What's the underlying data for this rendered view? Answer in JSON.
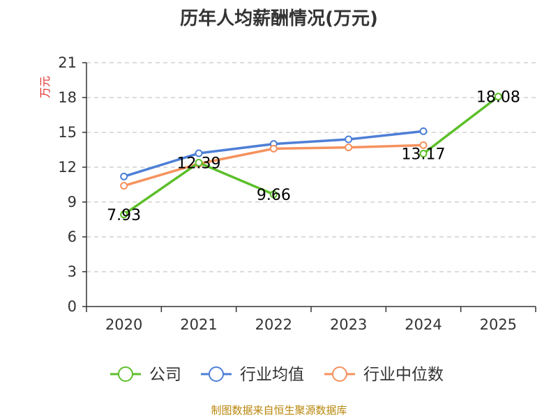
{
  "chart_data": {
    "type": "line",
    "title": "历年人均薪酬情况(万元)",
    "ylabel": "万元",
    "xlabel": "",
    "ylim": [
      0,
      21
    ],
    "yticks": [
      0,
      3,
      6,
      9,
      12,
      15,
      18,
      21
    ],
    "categories": [
      "2020",
      "2021",
      "2022",
      "2023",
      "2024",
      "2025"
    ],
    "grid": true,
    "legend_position": "bottom",
    "series": [
      {
        "name": "公司",
        "color": "#5cbf2a",
        "values": [
          7.93,
          12.39,
          9.66,
          null,
          13.17,
          18.08
        ],
        "labels": [
          "7.93",
          "12.39",
          "9.66",
          "",
          "13.17",
          "18.08"
        ]
      },
      {
        "name": "行业均值",
        "color": "#4e7fd6",
        "values": [
          11.2,
          13.2,
          14.0,
          14.4,
          15.1,
          null
        ]
      },
      {
        "name": "行业中位数",
        "color": "#f5925e",
        "values": [
          10.4,
          12.3,
          13.6,
          13.7,
          13.9,
          null
        ]
      }
    ]
  },
  "footer": "制图数据来自恒生聚源数据库"
}
